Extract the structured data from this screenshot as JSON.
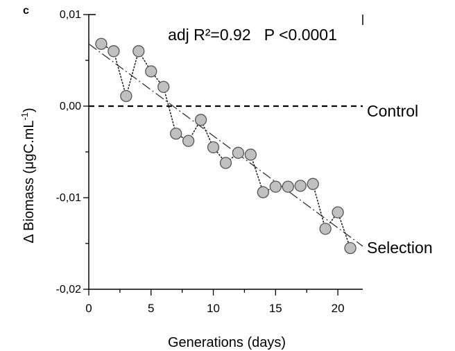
{
  "panel_label": "c",
  "chart_data": {
    "type": "scatter",
    "xlabel": "Generations (days)",
    "ylabel": "Δ Biomass (μgC.mL",
    "ylabel_sup": "-1",
    "ylabel_close": ")",
    "xlim": [
      0,
      22
    ],
    "ylim": [
      -0.02,
      0.01
    ],
    "x_ticks": [
      {
        "value": 0,
        "label": "0"
      },
      {
        "value": 5,
        "label": "5"
      },
      {
        "value": 10,
        "label": "10"
      },
      {
        "value": 15,
        "label": "15"
      },
      {
        "value": 20,
        "label": "20"
      }
    ],
    "y_ticks": [
      {
        "value": 0.01,
        "label": "0,01"
      },
      {
        "value": 0.0,
        "label": "0,00"
      },
      {
        "value": -0.01,
        "label": "-0,01"
      },
      {
        "value": -0.02,
        "label": "-0,02"
      }
    ],
    "stats_text": "adj R²=0.92   P <0.0001",
    "control": {
      "label": "Control",
      "value": 0.0
    },
    "selection": {
      "label": "Selection",
      "x": [
        1,
        2,
        3,
        4,
        5,
        6,
        7,
        8,
        9,
        10,
        11,
        12,
        13,
        14,
        15,
        16,
        17,
        18,
        19,
        20,
        21
      ],
      "y": [
        0.0068,
        0.006,
        0.0011,
        0.006,
        0.0038,
        0.0021,
        -0.003,
        -0.0038,
        -0.0015,
        -0.0045,
        -0.0062,
        -0.0051,
        -0.0053,
        -0.0094,
        -0.0088,
        -0.0088,
        -0.0087,
        -0.0085,
        -0.0134,
        -0.0116,
        -0.0155
      ]
    },
    "regression": {
      "x": [
        0,
        22
      ],
      "y": [
        0.0068,
        -0.0153
      ]
    },
    "colors": {
      "marker_fill": "#c0c0c0",
      "marker_stroke": "#555555",
      "line": "#000000"
    }
  }
}
